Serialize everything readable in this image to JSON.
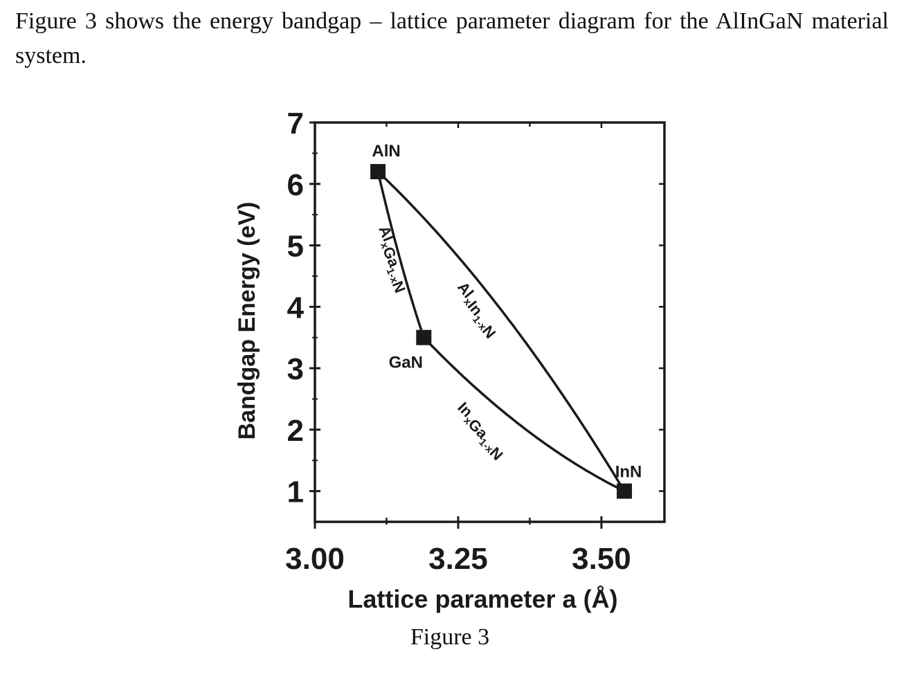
{
  "intro_text": "Figure 3 shows the energy bandgap – lattice parameter diagram for the AlInGaN material system.",
  "figure_caption": "Figure 3",
  "chart_data": {
    "type": "line",
    "title": "",
    "xlabel": "Lattice parameter a (Å)",
    "ylabel": "Bandgap Energy (eV)",
    "xlim": [
      3.0,
      3.61
    ],
    "ylim": [
      0.5,
      7.0
    ],
    "x_ticks": [
      "3.00",
      "3.25",
      "3.50"
    ],
    "y_ticks": [
      "1",
      "2",
      "3",
      "4",
      "5",
      "6",
      "7"
    ],
    "points": [
      {
        "name": "AlN",
        "x": 3.11,
        "y": 6.2
      },
      {
        "name": "GaN",
        "x": 3.19,
        "y": 3.5
      },
      {
        "name": "InN",
        "x": 3.54,
        "y": 1.0
      }
    ],
    "series": [
      {
        "name": "Al_x Ga_1-x N",
        "from": "AlN",
        "to": "GaN",
        "bowing": 0.5
      },
      {
        "name": "In_x Ga_1-x N",
        "from": "GaN",
        "to": "InN",
        "bowing": 0.9
      },
      {
        "name": "Al_x In_1-x N",
        "from": "AlN",
        "to": "InN",
        "bowing": -1.4
      }
    ],
    "curve_labels": [
      {
        "base": "Al",
        "sub1": "x",
        "mid": "Ga",
        "sub2": "1-x",
        "end": "N"
      },
      {
        "base": "In",
        "sub1": "x",
        "mid": "Ga",
        "sub2": "1-x",
        "end": "N"
      },
      {
        "base": "Al",
        "sub1": "x",
        "mid": "In",
        "sub2": "1-x",
        "end": "N"
      }
    ],
    "grid": false,
    "legend": "none"
  }
}
